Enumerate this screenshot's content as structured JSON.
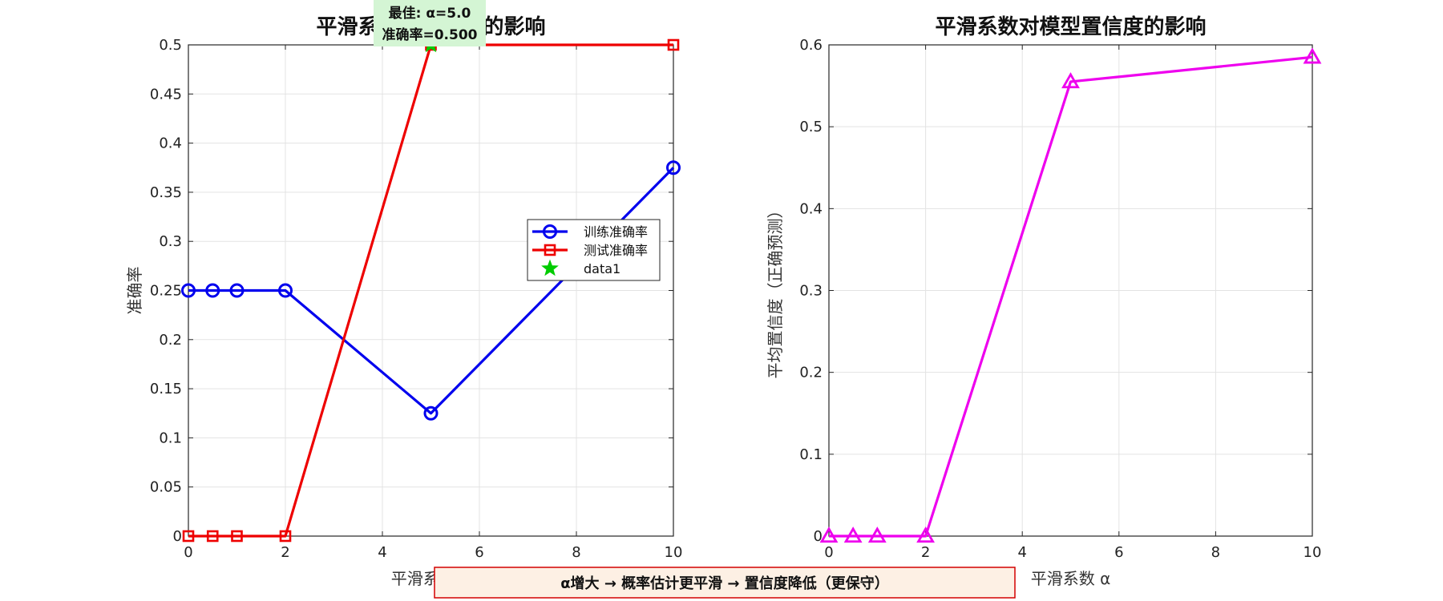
{
  "chart_data": [
    {
      "type": "line",
      "title": "平滑系数对准确率的影响",
      "xlabel": "平滑系数 α",
      "ylabel": "准确率",
      "xlim": [
        0,
        10
      ],
      "ylim": [
        0,
        0.5
      ],
      "xticks": [
        0,
        2,
        4,
        6,
        8,
        10
      ],
      "yticks": [
        0,
        0.05,
        0.1,
        0.15,
        0.2,
        0.25,
        0.3,
        0.35,
        0.4,
        0.45,
        0.5
      ],
      "grid": true,
      "legend_position": "right",
      "series": [
        {
          "name": "训练准确率",
          "color": "#0000ee",
          "marker": "circle",
          "x": [
            0,
            0.5,
            1,
            2,
            5,
            10
          ],
          "y": [
            0.25,
            0.25,
            0.25,
            0.25,
            0.125,
            0.375
          ]
        },
        {
          "name": "测试准确率",
          "color": "#ee0000",
          "marker": "square",
          "x": [
            0,
            0.5,
            1,
            2,
            5,
            10
          ],
          "y": [
            0,
            0,
            0,
            0,
            0.5,
            0.5
          ]
        },
        {
          "name": "data1",
          "color": "#00cc00",
          "marker": "star",
          "x": [
            5
          ],
          "y": [
            0.5
          ]
        }
      ],
      "annotation": {
        "line1": "最佳: α=5.0",
        "line2": "准确率=0.500",
        "background": "#d4f5d4"
      }
    },
    {
      "type": "line",
      "title": "平滑系数对模型置信度的影响",
      "xlabel": "平滑系数 α",
      "ylabel": "平均置信度（正确预测）",
      "xlim": [
        0,
        10
      ],
      "ylim": [
        0,
        0.6
      ],
      "xticks": [
        0,
        2,
        4,
        6,
        8,
        10
      ],
      "yticks": [
        0,
        0.1,
        0.2,
        0.3,
        0.4,
        0.5,
        0.6
      ],
      "grid": true,
      "series": [
        {
          "color": "#ee00ee",
          "marker": "triangle",
          "x": [
            0,
            0.5,
            1,
            2,
            5,
            10
          ],
          "y": [
            0,
            0,
            0,
            0,
            0.555,
            0.585
          ]
        }
      ]
    }
  ],
  "footer_note": {
    "text": "α增大 → 概率估计更平滑 → 置信度降低（更保守）",
    "background": "#fdf0e4",
    "border": "#d40000"
  }
}
